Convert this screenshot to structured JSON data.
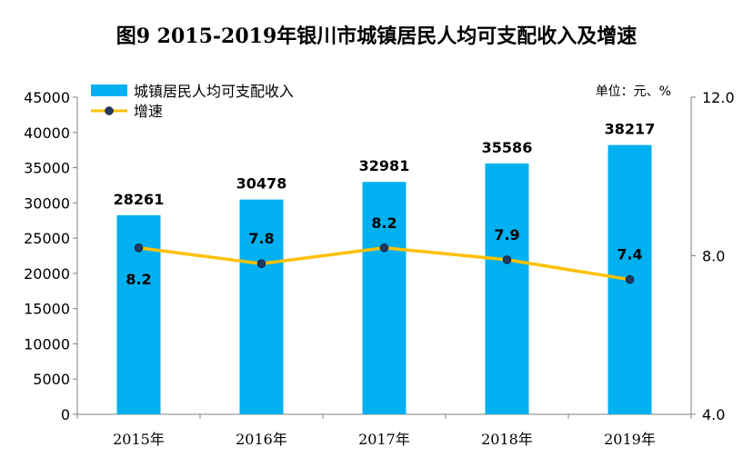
{
  "chart_data": {
    "type": "bar",
    "title": "图9   2015-2019年银川市城镇居民人均可支配收入及增速",
    "unit": "单位：元、%",
    "categories": [
      "2015年",
      "2016年",
      "2017年",
      "2018年",
      "2019年"
    ],
    "series": [
      {
        "name": "城镇居民人均可支配收入",
        "type": "bar",
        "axis": "left",
        "color": "#00B0F0",
        "values": [
          28261,
          30478,
          32981,
          35586,
          38217
        ]
      },
      {
        "name": "增速",
        "type": "line",
        "axis": "right",
        "color": "#FFC000",
        "values": [
          8.2,
          7.8,
          8.2,
          7.9,
          7.4
        ]
      }
    ],
    "y_left": {
      "ylim": [
        0,
        45000
      ],
      "ticks": [
        "0",
        "5000",
        "10000",
        "15000",
        "20000",
        "25000",
        "30000",
        "35000",
        "40000",
        "45000"
      ]
    },
    "y_right": {
      "ylim": [
        4.0,
        12.0
      ],
      "ticks": [
        "4.0",
        "8.0",
        "12.0"
      ]
    },
    "grid": false,
    "legend_position": "top-left"
  }
}
